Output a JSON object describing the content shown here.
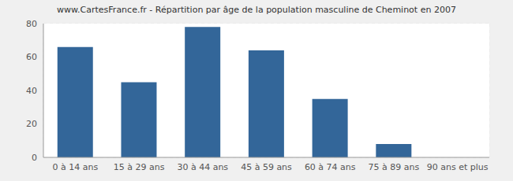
{
  "chart_data": {
    "type": "bar",
    "title": "www.CartesFrance.fr - Répartition par âge de la population masculine de Cheminot en 2007",
    "categories": [
      "0 à 14 ans",
      "15 à 29 ans",
      "30 à 44 ans",
      "45 à 59 ans",
      "60 à 74 ans",
      "75 à 89 ans",
      "90 ans et plus"
    ],
    "values": [
      66,
      45,
      78,
      64,
      35,
      8,
      0
    ],
    "color": "#336699",
    "ylim": [
      0,
      80
    ],
    "yticks": [
      0,
      20,
      40,
      60,
      80
    ],
    "grid": true
  }
}
